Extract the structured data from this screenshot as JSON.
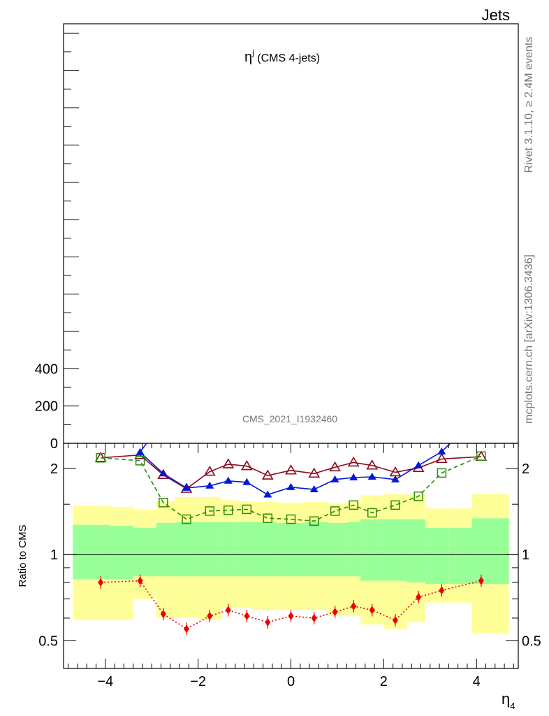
{
  "header": {
    "corner_label": "Jets"
  },
  "side_labels": {
    "generator": "Rivet 3.1.10, ≥ 2.4M events",
    "source": "mcplots.cern.ch [arXiv:1306.3436]"
  },
  "chart_data": [
    {
      "type": "line",
      "panel": "main",
      "title_main": "η",
      "title_sup": "j",
      "title_rest": " (CMS 4-jets)",
      "analysis_label": "CMS_2021_I1932460",
      "yticks": [
        {
          "value": 0,
          "label": "0"
        },
        {
          "value": 200,
          "label": "200"
        },
        {
          "value": 400,
          "label": "400"
        }
      ],
      "ylim": [
        0,
        2250
      ]
    },
    {
      "type": "line",
      "panel": "ratio",
      "ylabel": "Ratio to CMS",
      "xlabel_main": "η",
      "xlabel_sub": "4",
      "xlim": [
        -4.9,
        4.9
      ],
      "ylim": [
        0.4,
        2.45
      ],
      "log_y": true,
      "xticks": [
        {
          "value": -4,
          "label": "−4"
        },
        {
          "value": -2,
          "label": "−2"
        },
        {
          "value": 0,
          "label": "0"
        },
        {
          "value": 2,
          "label": "2"
        },
        {
          "value": 4,
          "label": "4"
        }
      ],
      "yticks": [
        {
          "value": 0.5,
          "label": "0.5"
        },
        {
          "value": 1,
          "label": "1"
        },
        {
          "value": 2,
          "label": "2"
        }
      ],
      "bins": [
        {
          "lo": -4.7,
          "hi": -3.9,
          "g_lo": 0.82,
          "g_hi": 1.27,
          "y_lo": 0.59,
          "y_hi": 1.48
        },
        {
          "lo": -3.9,
          "hi": -3.4,
          "g_lo": 0.82,
          "g_hi": 1.26,
          "y_lo": 0.59,
          "y_hi": 1.47
        },
        {
          "lo": -3.4,
          "hi": -2.9,
          "g_lo": 0.84,
          "g_hi": 1.24,
          "y_lo": 0.7,
          "y_hi": 1.44
        },
        {
          "lo": -2.9,
          "hi": -2.5,
          "g_lo": 0.84,
          "g_hi": 1.29,
          "y_lo": 0.6,
          "y_hi": 1.54
        },
        {
          "lo": -2.5,
          "hi": -2.0,
          "g_lo": 0.84,
          "g_hi": 1.3,
          "y_lo": 0.6,
          "y_hi": 1.59
        },
        {
          "lo": -2.0,
          "hi": -1.5,
          "g_lo": 0.84,
          "g_hi": 1.3,
          "y_lo": 0.59,
          "y_hi": 1.59
        },
        {
          "lo": -1.5,
          "hi": -1.2,
          "g_lo": 0.84,
          "g_hi": 1.3,
          "y_lo": 0.65,
          "y_hi": 1.55
        },
        {
          "lo": -1.2,
          "hi": -0.8,
          "g_lo": 0.84,
          "g_hi": 1.3,
          "y_lo": 0.65,
          "y_hi": 1.54
        },
        {
          "lo": -0.8,
          "hi": -0.3,
          "g_lo": 0.84,
          "g_hi": 1.3,
          "y_lo": 0.64,
          "y_hi": 1.53
        },
        {
          "lo": -0.3,
          "hi": 0.3,
          "g_lo": 0.84,
          "g_hi": 1.29,
          "y_lo": 0.64,
          "y_hi": 1.52
        },
        {
          "lo": 0.3,
          "hi": 0.8,
          "g_lo": 0.84,
          "g_hi": 1.3,
          "y_lo": 0.64,
          "y_hi": 1.53
        },
        {
          "lo": 0.8,
          "hi": 1.2,
          "g_lo": 0.84,
          "g_hi": 1.29,
          "y_lo": 0.61,
          "y_hi": 1.51
        },
        {
          "lo": 1.2,
          "hi": 1.5,
          "g_lo": 0.84,
          "g_hi": 1.3,
          "y_lo": 0.61,
          "y_hi": 1.54
        },
        {
          "lo": 1.5,
          "hi": 2.0,
          "g_lo": 0.81,
          "g_hi": 1.33,
          "y_lo": 0.57,
          "y_hi": 1.61
        },
        {
          "lo": 2.0,
          "hi": 2.5,
          "g_lo": 0.81,
          "g_hi": 1.33,
          "y_lo": 0.55,
          "y_hi": 1.63
        },
        {
          "lo": 2.5,
          "hi": 2.9,
          "g_lo": 0.8,
          "g_hi": 1.33,
          "y_lo": 0.58,
          "y_hi": 1.62
        },
        {
          "lo": 2.9,
          "hi": 3.4,
          "g_lo": 0.79,
          "g_hi": 1.24,
          "y_lo": 0.68,
          "y_hi": 1.45
        },
        {
          "lo": 3.4,
          "hi": 3.9,
          "g_lo": 0.79,
          "g_hi": 1.24,
          "y_lo": 0.68,
          "y_hi": 1.45
        },
        {
          "lo": 3.9,
          "hi": 4.7,
          "g_lo": 0.79,
          "g_hi": 1.34,
          "y_lo": 0.53,
          "y_hi": 1.63
        }
      ],
      "series": [
        {
          "marker": "triangle-open",
          "color": "#8b0a1e",
          "dash": "",
          "x": [
            -4.1,
            -3.25,
            -2.75,
            -2.25,
            -1.75,
            -1.35,
            -0.95,
            -0.5,
            0.0,
            0.5,
            0.95,
            1.35,
            1.75,
            2.25,
            2.75,
            3.25,
            4.1
          ],
          "y": [
            2.18,
            2.23,
            1.9,
            1.7,
            1.95,
            2.07,
            2.04,
            1.89,
            1.97,
            1.92,
            2.02,
            2.1,
            2.05,
            1.94,
            2.01,
            2.16,
            2.2
          ]
        },
        {
          "marker": "triangle-filled",
          "color": "#0018d8",
          "dash": "",
          "x": [
            -3.25,
            -2.75,
            -2.25,
            -1.75,
            -1.35,
            -0.95,
            -0.5,
            0.0,
            0.5,
            0.95,
            1.35,
            1.75,
            2.25,
            2.75,
            3.25
          ],
          "y": [
            2.28,
            1.92,
            1.71,
            1.74,
            1.81,
            1.79,
            1.62,
            1.72,
            1.69,
            1.83,
            1.86,
            1.87,
            1.83,
            2.05,
            2.29
          ],
          "x_ends": [
            [
              -3.0,
              2.6
            ],
            [
              3.6,
              2.6
            ]
          ]
        },
        {
          "marker": "square-open",
          "color": "#2e8b0a",
          "dash": "6,4",
          "x": [
            -4.1,
            -3.25,
            -2.75,
            -2.25,
            -1.75,
            -1.35,
            -0.95,
            -0.5,
            0.0,
            0.5,
            0.95,
            1.35,
            1.75,
            2.25,
            2.75,
            3.25,
            4.1
          ],
          "y": [
            2.18,
            2.13,
            1.52,
            1.33,
            1.42,
            1.43,
            1.44,
            1.34,
            1.33,
            1.31,
            1.42,
            1.49,
            1.4,
            1.49,
            1.6,
            1.93,
            2.21
          ]
        },
        {
          "marker": "diamond-filled",
          "color": "#ee0000",
          "dash": "2,3",
          "x": [
            -4.1,
            -3.25,
            -2.75,
            -2.25,
            -1.75,
            -1.35,
            -0.95,
            -0.5,
            0.0,
            0.5,
            0.95,
            1.35,
            1.75,
            2.25,
            2.75,
            3.25,
            4.1
          ],
          "y": [
            0.8,
            0.81,
            0.62,
            0.55,
            0.61,
            0.64,
            0.61,
            0.58,
            0.61,
            0.6,
            0.63,
            0.66,
            0.64,
            0.59,
            0.71,
            0.75,
            0.81
          ]
        }
      ]
    }
  ]
}
